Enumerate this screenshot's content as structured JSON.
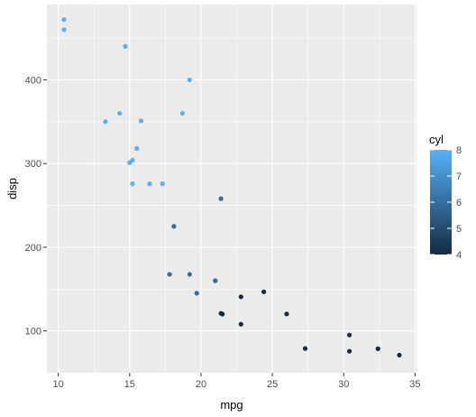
{
  "chart_data": {
    "type": "scatter",
    "title": "",
    "xlabel": "mpg",
    "ylabel": "disp",
    "xlim": [
      9.2,
      35.1
    ],
    "ylim": [
      50,
      490
    ],
    "x_ticks": [
      10,
      15,
      20,
      25,
      30,
      35
    ],
    "y_ticks": [
      100,
      200,
      300,
      400
    ],
    "grid": true,
    "background": "#ebebeb",
    "legend": {
      "title": "cyl",
      "position": "right",
      "type": "colorbar",
      "range": [
        4,
        8
      ],
      "ticks": [
        4,
        5,
        6,
        7,
        8
      ],
      "colors": [
        "#132b43",
        "#56b1f7"
      ]
    },
    "points": [
      {
        "x": 21.0,
        "y": 160.0,
        "c": 6
      },
      {
        "x": 21.0,
        "y": 160.0,
        "c": 6
      },
      {
        "x": 22.8,
        "y": 108.0,
        "c": 4
      },
      {
        "x": 21.4,
        "y": 258.0,
        "c": 6
      },
      {
        "x": 18.7,
        "y": 360.0,
        "c": 8
      },
      {
        "x": 18.1,
        "y": 225.0,
        "c": 6
      },
      {
        "x": 14.3,
        "y": 360.0,
        "c": 8
      },
      {
        "x": 24.4,
        "y": 146.7,
        "c": 4
      },
      {
        "x": 22.8,
        "y": 140.8,
        "c": 4
      },
      {
        "x": 19.2,
        "y": 167.6,
        "c": 6
      },
      {
        "x": 17.8,
        "y": 167.6,
        "c": 6
      },
      {
        "x": 16.4,
        "y": 275.8,
        "c": 8
      },
      {
        "x": 17.3,
        "y": 275.8,
        "c": 8
      },
      {
        "x": 15.2,
        "y": 275.8,
        "c": 8
      },
      {
        "x": 10.4,
        "y": 472.0,
        "c": 8
      },
      {
        "x": 10.4,
        "y": 460.0,
        "c": 8
      },
      {
        "x": 14.7,
        "y": 440.0,
        "c": 8
      },
      {
        "x": 32.4,
        "y": 78.7,
        "c": 4
      },
      {
        "x": 30.4,
        "y": 75.7,
        "c": 4
      },
      {
        "x": 33.9,
        "y": 71.1,
        "c": 4
      },
      {
        "x": 21.5,
        "y": 120.1,
        "c": 4
      },
      {
        "x": 15.5,
        "y": 318.0,
        "c": 8
      },
      {
        "x": 15.2,
        "y": 304.0,
        "c": 8
      },
      {
        "x": 13.3,
        "y": 350.0,
        "c": 8
      },
      {
        "x": 19.2,
        "y": 400.0,
        "c": 8
      },
      {
        "x": 27.3,
        "y": 79.0,
        "c": 4
      },
      {
        "x": 26.0,
        "y": 120.3,
        "c": 4
      },
      {
        "x": 30.4,
        "y": 95.1,
        "c": 4
      },
      {
        "x": 15.8,
        "y": 351.0,
        "c": 8
      },
      {
        "x": 19.7,
        "y": 145.0,
        "c": 6
      },
      {
        "x": 15.0,
        "y": 301.0,
        "c": 8
      },
      {
        "x": 21.4,
        "y": 121.0,
        "c": 4
      }
    ]
  }
}
